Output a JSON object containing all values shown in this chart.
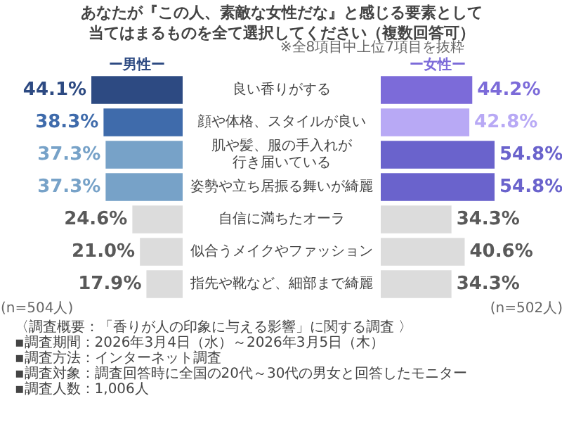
{
  "chart_data": [
    {
      "type": "other",
      "title": "あなたが『この人、素敵な女性だな』と感じる要素として当てはまるものを全て選択してください（複数回答可）",
      "subtitle": "※全8項目中上位7項目を抜粋"
    },
    {
      "type": "bar",
      "orientation": "horizontal",
      "categories": [
        "良い香りがする",
        "顔や体格、スタイルが良い",
        "肌や髪、服の手入れが行き届いている",
        "姿勢や立ち居振る舞いが綺麗",
        "自信に満ちたオーラ",
        "似合うメイクやファッション",
        "指先や靴など、細部まで綺麗"
      ],
      "series": [
        {
          "name": "ー男性ー",
          "values": [
            44.1,
            38.3,
            37.3,
            37.3,
            24.6,
            21.0,
            17.9
          ],
          "value_labels": [
            "44.1%",
            "38.3%",
            "37.3%",
            "37.3%",
            "24.6%",
            "21.0%",
            "17.9%"
          ],
          "colors": [
            "#2d4a82",
            "#3f6bab",
            "#77a2c8",
            "#77a2c8",
            "#dcdcdc",
            "#dcdcdc",
            "#dcdcdc"
          ]
        }
      ],
      "annotations": [
        "(n=504人)"
      ]
    },
    {
      "type": "bar",
      "orientation": "horizontal",
      "tick_labels": false,
      "categories": [
        "良い香りがする",
        "顔や体格、スタイルが良い",
        "肌や髪、服の手入れが行き届いている",
        "姿勢や立ち居振る舞いが綺麗",
        "自信に満ちたオーラ",
        "似合うメイクやファッション",
        "指先や靴など、細部まで綺麗"
      ],
      "series": [
        {
          "name": "ー女性ー",
          "values": [
            44.2,
            42.8,
            54.8,
            54.8,
            34.3,
            40.6,
            34.3
          ],
          "value_labels": [
            "44.2%",
            "42.8%",
            "54.8%",
            "54.8%",
            "34.3%",
            "40.6%",
            "34.3%"
          ],
          "colors": [
            "#7c6bd9",
            "#b8a9f5",
            "#6a63cc",
            "#6a63cc",
            "#dcdcdc",
            "#dcdcdc",
            "#dcdcdc"
          ]
        }
      ],
      "annotations": [
        "(n=502人)"
      ]
    },
    {
      "type": "other",
      "annotations": [
        "〈調査概要：「香りが人の印象に与える影響」に関する調査 〉",
        "▪調査期間：2026年3月4日（水）～2026年3月5日（木）",
        "▪調査方法：インターネット調査",
        "▪調査対象：調査回答時に全国の20代～30代の男女と回答したモニター",
        "▪調査人数：1,006人"
      ]
    }
  ]
}
